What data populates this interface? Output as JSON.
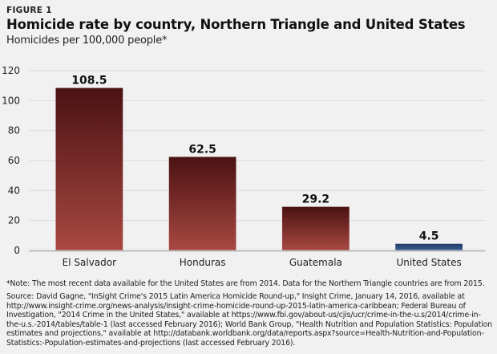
{
  "figure_label": "FIGURE 1",
  "title": "Homicide rate by country, Northern Triangle and United States",
  "subtitle": "Homicides per 100,000 people*",
  "note": "*Note: The most recent data available for the United States are from 2014. Data for the Northern Triangle countries are from 2015.",
  "source": "Source: David Gagne, \"InSight Crime's 2015 Latin America Homicide Round-up,\" Insight Crime, January 14, 2016, available at http://www.insight-crime.org/news-analysis/insight-crime-homicide-round-up-2015-latin-america-caribbean; Federal Bureau of Investigation, \"2014 Crime in the United States,\" available at https://www.fbi.gov/about-us/cjis/ucr/crime-in-the-u.s/2014/crime-in-the-u.s.-2014/tables/table-1 (last accessed February 2016); World Bank Group, \"Health Nutrition and Population Statistics: Population estimates and projections,\" available at http://databank.worldbank.org/data/reports.aspx?source=Health-Nutrition-and-Population-Statistics:-Population-estimates-and-projections (last accessed February 2016).",
  "chart_data": {
    "type": "bar",
    "title": "Homicide rate by country, Northern Triangle and United States",
    "subtitle": "Homicides per 100,000 people*",
    "xlabel": "",
    "ylabel": "Homicides per 100,000 people",
    "categories": [
      "El Salvador",
      "Honduras",
      "Guatemala",
      "United States"
    ],
    "values": [
      108.5,
      62.5,
      29.2,
      4.5
    ],
    "data_labels": [
      "108.5",
      "62.5",
      "29.2",
      "4.5"
    ],
    "ylim": [
      0,
      120
    ],
    "yticks": [
      0,
      20,
      40,
      60,
      80,
      100,
      120
    ],
    "grid": true,
    "legend": "none",
    "colors": {
      "northern_triangle_top": "#4a1212",
      "northern_triangle_bottom": "#a94842",
      "united_states_top": "#1e3a66",
      "united_states_bottom": "#3b5f93",
      "grid": "#dcdcdc",
      "baseline": "#bdbdbd"
    },
    "bar_groups": [
      "northern_triangle",
      "northern_triangle",
      "northern_triangle",
      "united_states"
    ]
  }
}
